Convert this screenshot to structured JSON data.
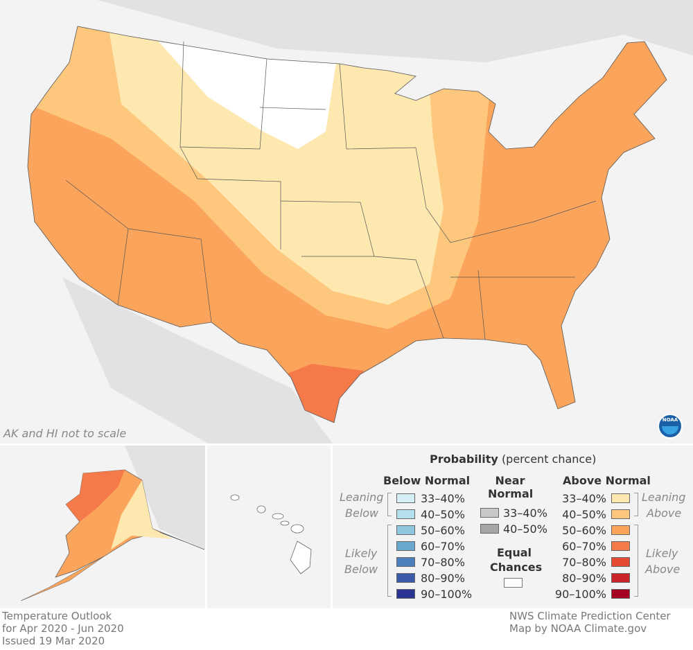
{
  "map": {
    "note": "AK and HI not to scale",
    "logo": "NOAA"
  },
  "legend": {
    "title": "Probability",
    "title_sub": "(percent chance)",
    "below": {
      "heading": "Below Normal",
      "leaning": [
        "Leaning",
        "Below"
      ],
      "likely": [
        "Likely",
        "Below"
      ],
      "items": [
        {
          "label": "33–40%",
          "color": "#d6eef5"
        },
        {
          "label": "40–50%",
          "color": "#b4dfec"
        },
        {
          "label": "50–60%",
          "color": "#8fc7df"
        },
        {
          "label": "60–70%",
          "color": "#6aa7cf"
        },
        {
          "label": "70–80%",
          "color": "#4b80bd"
        },
        {
          "label": "80–90%",
          "color": "#3b5ba8"
        },
        {
          "label": "90–100%",
          "color": "#2c3493"
        }
      ]
    },
    "near": {
      "heading": [
        "Near",
        "Normal"
      ],
      "items": [
        {
          "label": "33–40%",
          "color": "#c8c8c8"
        },
        {
          "label": "40–50%",
          "color": "#a6a6a6"
        }
      ]
    },
    "equal": {
      "heading": [
        "Equal",
        "Chances"
      ],
      "color": "#ffffff"
    },
    "above": {
      "heading": "Above Normal",
      "leaning": [
        "Leaning",
        "Above"
      ],
      "likely": [
        "Likely",
        "Above"
      ],
      "items": [
        {
          "label": "33–40%",
          "color": "#fde8b0"
        },
        {
          "label": "40–50%",
          "color": "#fdc87e"
        },
        {
          "label": "50–60%",
          "color": "#fba45c"
        },
        {
          "label": "60–70%",
          "color": "#f47a4a"
        },
        {
          "label": "70–80%",
          "color": "#e34c33"
        },
        {
          "label": "80–90%",
          "color": "#c9242a"
        },
        {
          "label": "90–100%",
          "color": "#a50022"
        }
      ]
    }
  },
  "footer": {
    "left": [
      "Temperature Outlook",
      "for Apr 2020 - Jun 2020",
      "Issued 19 Mar 2020"
    ],
    "right": [
      "NWS Climate Prediction Center",
      "Map by NOAA Climate.gov"
    ]
  }
}
